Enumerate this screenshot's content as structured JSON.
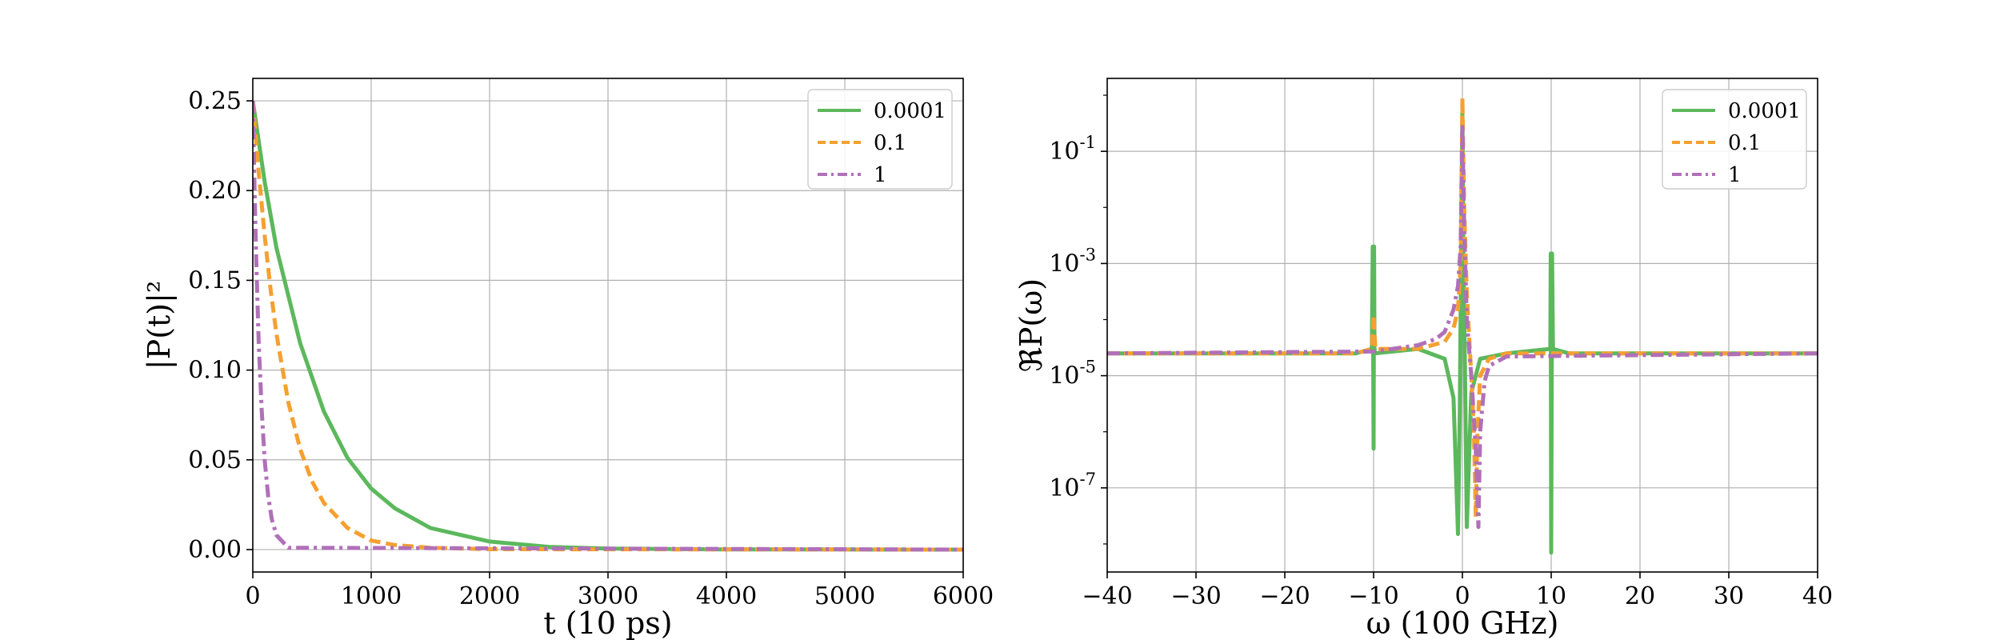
{
  "chart_data": [
    {
      "type": "line",
      "xlabel": "t (10 ps)",
      "ylabel": "|P(t)|²",
      "xlim": [
        0,
        6000
      ],
      "ylim": [
        -0.0125,
        0.2625
      ],
      "xticks": [
        0,
        1000,
        2000,
        3000,
        4000,
        5000,
        6000
      ],
      "xtick_labels": [
        "0",
        "1000",
        "2000",
        "3000",
        "4000",
        "5000",
        "6000"
      ],
      "yticks": [
        0.0,
        0.05,
        0.1,
        0.15,
        0.2,
        0.25
      ],
      "ytick_labels": [
        "0.00",
        "0.05",
        "0.10",
        "0.15",
        "0.20",
        "0.25"
      ],
      "grid": true,
      "legend": "top-right",
      "series": [
        {
          "name": "0.0001",
          "color": "#5cb85c",
          "style": "solid",
          "x": [
            0,
            100,
            200,
            400,
            600,
            800,
            1000,
            1200,
            1500,
            2000,
            2500,
            3000,
            4000,
            6000
          ],
          "y": [
            0.25,
            0.205,
            0.168,
            0.115,
            0.077,
            0.051,
            0.034,
            0.023,
            0.012,
            0.0045,
            0.0015,
            0.0005,
            0.0001,
            0.0
          ]
        },
        {
          "name": "0.1",
          "color": "#f5a030",
          "style": "dashed",
          "x": [
            0,
            50,
            100,
            150,
            200,
            300,
            400,
            500,
            600,
            800,
            1000,
            1200,
            1500,
            2000,
            6000
          ],
          "y": [
            0.25,
            0.21,
            0.175,
            0.145,
            0.12,
            0.082,
            0.056,
            0.038,
            0.026,
            0.012,
            0.005,
            0.0025,
            0.001,
            0.0002,
            0.0
          ]
        },
        {
          "name": "1",
          "color": "#b070b8",
          "style": "dashdot",
          "x": [
            0,
            10,
            20,
            30,
            50,
            75,
            100,
            130,
            160,
            200,
            300,
            6000
          ],
          "y": [
            0.25,
            0.215,
            0.185,
            0.16,
            0.115,
            0.078,
            0.05,
            0.03,
            0.017,
            0.008,
            0.001,
            0.0
          ]
        }
      ]
    },
    {
      "type": "line",
      "xlabel": "ω (100 GHz)",
      "ylabel": "ℜP(ω)",
      "xlim": [
        -40,
        40
      ],
      "ylim_log10": [
        -8.5,
        0.3
      ],
      "yscale": "log",
      "xticks": [
        -40,
        -30,
        -20,
        -10,
        0,
        10,
        20,
        30,
        40
      ],
      "xtick_labels": [
        "−40",
        "−30",
        "−20",
        "−10",
        "0",
        "10",
        "20",
        "30",
        "40"
      ],
      "yticks_log10": [
        -1,
        -3,
        -5,
        -7
      ],
      "ytick_labels": [
        "10",
        "10",
        "10",
        "10"
      ],
      "ytick_exponents": [
        "-1",
        "-3",
        "-5",
        "-7"
      ],
      "grid": true,
      "legend": "top-right",
      "series": [
        {
          "name": "0.0001",
          "color": "#5cb85c",
          "style": "solid",
          "x": [
            -40,
            -12,
            -10.2,
            -10.1,
            -10.0,
            -9.95,
            -9.9,
            -9.85,
            -5,
            -2,
            -1,
            -0.5,
            -0.3,
            -0.1,
            0,
            0.1,
            0.3,
            0.5,
            1,
            2,
            5,
            9.9,
            9.95,
            10.0,
            10.1,
            10.2,
            12,
            40
          ],
          "y": [
            2.5e-05,
            2.5e-05,
            3e-05,
            0.002,
            5e-07,
            0.002,
            3e-05,
            2.5e-05,
            3e-05,
            2e-05,
            4e-06,
            1.5e-08,
            2e-06,
            0.01,
            0.5,
            0.002,
            1e-05,
            2e-08,
            5e-06,
            2e-05,
            2.5e-05,
            3e-05,
            0.0015,
            7e-09,
            0.0015,
            3e-05,
            2.5e-05,
            2.5e-05
          ]
        },
        {
          "name": "0.1",
          "color": "#f5a030",
          "style": "dashed",
          "x": [
            -40,
            -12,
            -10.2,
            -10.0,
            -9.8,
            -5,
            -2,
            -1,
            -0.5,
            -0.2,
            0,
            0.2,
            0.5,
            1.0,
            1.3,
            1.5,
            1.7,
            2.0,
            3,
            5,
            40
          ],
          "y": [
            2.5e-05,
            2.5e-05,
            3e-05,
            0.00012,
            3e-05,
            3e-05,
            4e-05,
            7e-05,
            0.00015,
            0.001,
            0.9,
            0.01,
            0.0003,
            1e-05,
            1e-06,
            3e-08,
            1e-06,
            1e-05,
            2e-05,
            2.5e-05,
            2.5e-05
          ]
        },
        {
          "name": "1",
          "color": "#b070b8",
          "style": "dashdot",
          "x": [
            -40,
            -10,
            -5,
            -3,
            -2,
            -1,
            -0.5,
            -0.2,
            0,
            0.2,
            0.5,
            1.0,
            1.5,
            1.8,
            2.0,
            2.5,
            3,
            5,
            40
          ],
          "y": [
            2.5e-05,
            2.7e-05,
            3.5e-05,
            4.5e-05,
            6e-05,
            0.00015,
            0.0004,
            0.002,
            0.3,
            0.005,
            0.0001,
            1e-05,
            5e-07,
            2e-08,
            1e-06,
            8e-06,
            1.5e-05,
            2.2e-05,
            2.5e-05
          ]
        }
      ]
    }
  ]
}
